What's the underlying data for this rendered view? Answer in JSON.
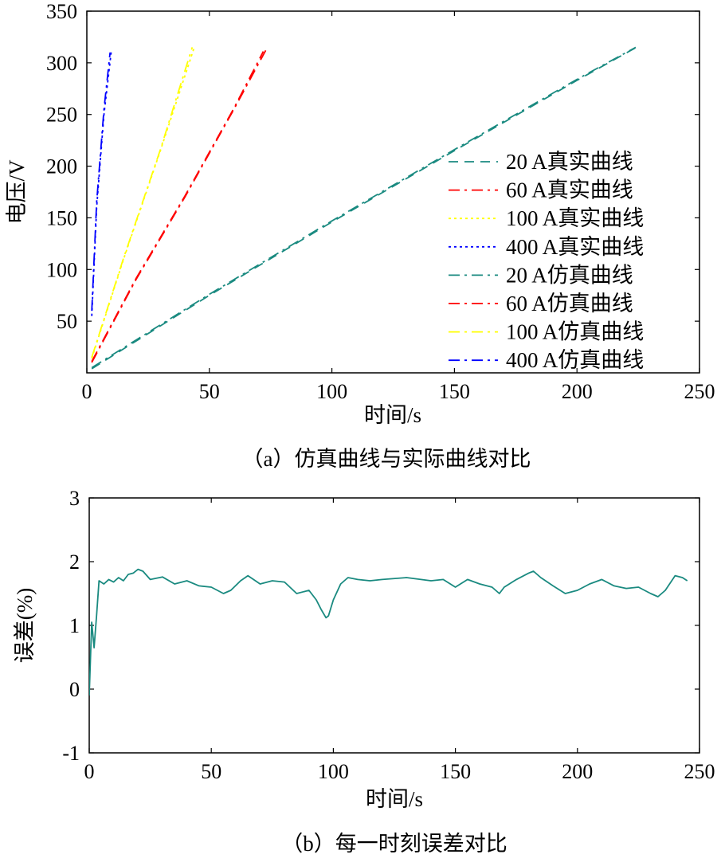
{
  "captions": {
    "a": "（a）仿真曲线与实际曲线对比",
    "b": "（b）每一时刻误差对比"
  },
  "chart_data": [
    {
      "id": "a",
      "type": "line",
      "xlabel": "时间/s",
      "ylabel": "电压/V",
      "xlim": [
        0,
        250
      ],
      "ylim": [
        0,
        350
      ],
      "xticks": [
        0,
        50,
        100,
        150,
        200,
        250
      ],
      "yticks": [
        50,
        100,
        150,
        200,
        250,
        300,
        350
      ],
      "legend_position": "right",
      "series": [
        {
          "name": "20 A真实曲线",
          "color": "#1a8a80",
          "dash": "dashed",
          "x": [
            2,
            50,
            100,
            150,
            200,
            225
          ],
          "y": [
            4,
            75,
            146,
            215,
            283,
            316
          ]
        },
        {
          "name": "60 A真实曲线",
          "color": "#ff0000",
          "dash": "dashdot",
          "x": [
            2,
            20,
            40,
            60,
            73
          ],
          "y": [
            10,
            90,
            170,
            255,
            312
          ]
        },
        {
          "name": "100 A真实曲线",
          "color": "#ffff00",
          "dash": "dotted",
          "x": [
            2,
            15,
            30,
            44
          ],
          "y": [
            14,
            110,
            215,
            316
          ]
        },
        {
          "name": "400 A真实曲线",
          "color": "#0000ff",
          "dash": "dotted",
          "x": [
            2,
            4,
            7,
            10
          ],
          "y": [
            55,
            160,
            250,
            312
          ]
        },
        {
          "name": "20 A仿真曲线",
          "color": "#1a8a80",
          "dash": "dashdot",
          "x": [
            2,
            50,
            100,
            150,
            200,
            224
          ],
          "y": [
            5,
            76,
            147,
            216,
            284,
            315
          ]
        },
        {
          "name": "60 A仿真曲线",
          "color": "#ff0000",
          "dash": "dashdot",
          "x": [
            2,
            20,
            40,
            60,
            72
          ],
          "y": [
            11,
            91,
            171,
            256,
            311
          ]
        },
        {
          "name": "100 A仿真曲线",
          "color": "#ffff00",
          "dash": "dashdot",
          "x": [
            2,
            15,
            30,
            43
          ],
          "y": [
            15,
            111,
            216,
            315
          ]
        },
        {
          "name": "400 A仿真曲线",
          "color": "#0000ff",
          "dash": "dashdot",
          "x": [
            2,
            4,
            7,
            9.5
          ],
          "y": [
            60,
            165,
            255,
            310
          ]
        }
      ]
    },
    {
      "id": "b",
      "type": "line",
      "xlabel": "时间/s",
      "ylabel": "误差(%)",
      "xlim": [
        0,
        250
      ],
      "ylim": [
        -1,
        3
      ],
      "xticks": [
        0,
        50,
        100,
        150,
        200,
        250
      ],
      "yticks": [
        -1,
        0,
        1,
        2,
        3
      ],
      "series": [
        {
          "color": "#1a8a80",
          "x": [
            0,
            1,
            2,
            3,
            4,
            6,
            8,
            10,
            12,
            14,
            16,
            18,
            20,
            22,
            25,
            30,
            35,
            40,
            45,
            50,
            55,
            58,
            62,
            65,
            70,
            75,
            80,
            85,
            90,
            93,
            95,
            97,
            98,
            100,
            103,
            106,
            110,
            115,
            120,
            130,
            140,
            145,
            150,
            155,
            160,
            165,
            168,
            170,
            175,
            180,
            182,
            185,
            190,
            195,
            200,
            205,
            210,
            215,
            220,
            225,
            230,
            233,
            236,
            240,
            243,
            245
          ],
          "y": [
            -0.1,
            1.05,
            0.65,
            1.15,
            1.7,
            1.65,
            1.72,
            1.68,
            1.75,
            1.7,
            1.8,
            1.82,
            1.88,
            1.85,
            1.72,
            1.76,
            1.65,
            1.7,
            1.62,
            1.6,
            1.5,
            1.55,
            1.7,
            1.78,
            1.65,
            1.7,
            1.68,
            1.5,
            1.55,
            1.4,
            1.25,
            1.12,
            1.15,
            1.4,
            1.65,
            1.75,
            1.72,
            1.7,
            1.72,
            1.75,
            1.7,
            1.72,
            1.6,
            1.72,
            1.65,
            1.6,
            1.5,
            1.6,
            1.72,
            1.82,
            1.85,
            1.75,
            1.62,
            1.5,
            1.55,
            1.65,
            1.72,
            1.62,
            1.58,
            1.6,
            1.5,
            1.45,
            1.55,
            1.78,
            1.75,
            1.7
          ]
        }
      ]
    }
  ]
}
